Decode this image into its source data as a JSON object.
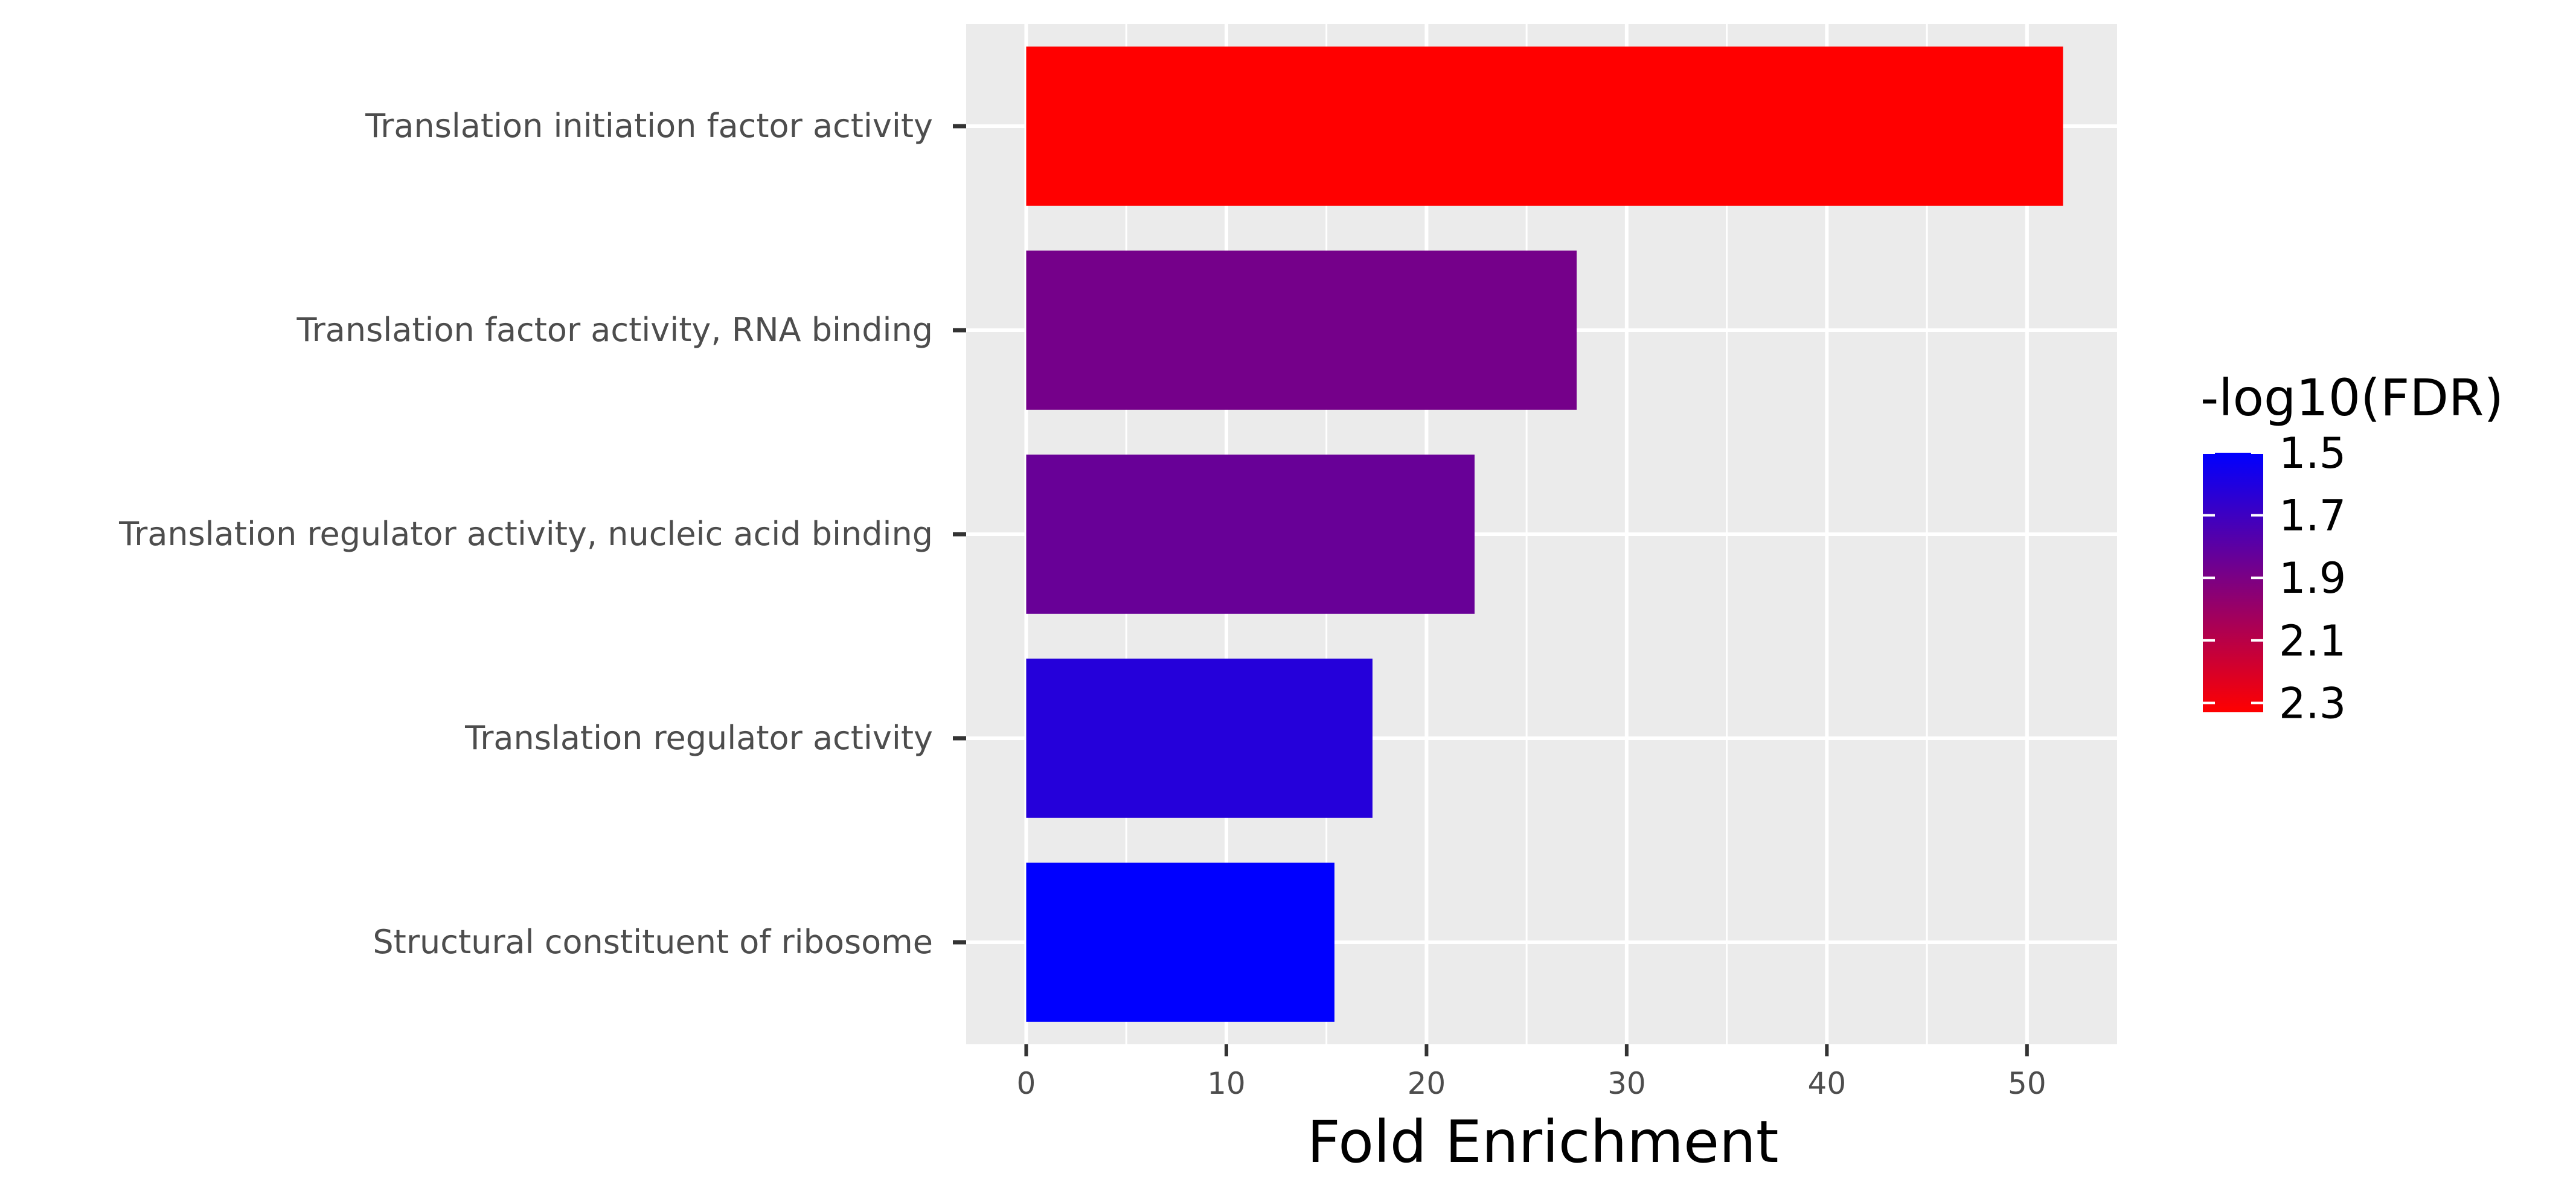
{
  "chart_data": {
    "type": "bar",
    "orientation": "horizontal",
    "categories": [
      "Translation initiation factor activity",
      "Translation factor activity, RNA binding",
      "Translation regulator activity, nucleic acid binding",
      "Translation regulator activity",
      "Structural constituent of ribosome"
    ],
    "values": [
      51.8,
      27.5,
      22.4,
      17.3,
      15.4
    ],
    "color_values": [
      2.33,
      1.88,
      1.84,
      1.62,
      1.5
    ],
    "xlabel": "Fold Enrichment",
    "x_ticks": [
      "0",
      "10",
      "20",
      "30",
      "40",
      "50"
    ],
    "x_tick_values": [
      0,
      10,
      20,
      30,
      40,
      50
    ],
    "xlim": [
      -3,
      54.5
    ],
    "grid": true,
    "legend": {
      "title": "-log10(FDR)",
      "placement": "right",
      "labels": [
        "1.5",
        "1.7",
        "1.9",
        "2.1",
        "2.3"
      ],
      "label_values": [
        1.5,
        1.7,
        1.9,
        2.1,
        2.3
      ],
      "range": [
        1.5,
        2.33
      ],
      "color_low": "#0000ff",
      "color_high": "#ff0000"
    },
    "panel_background": "#ebebeb",
    "grid_color": "#ffffff"
  }
}
